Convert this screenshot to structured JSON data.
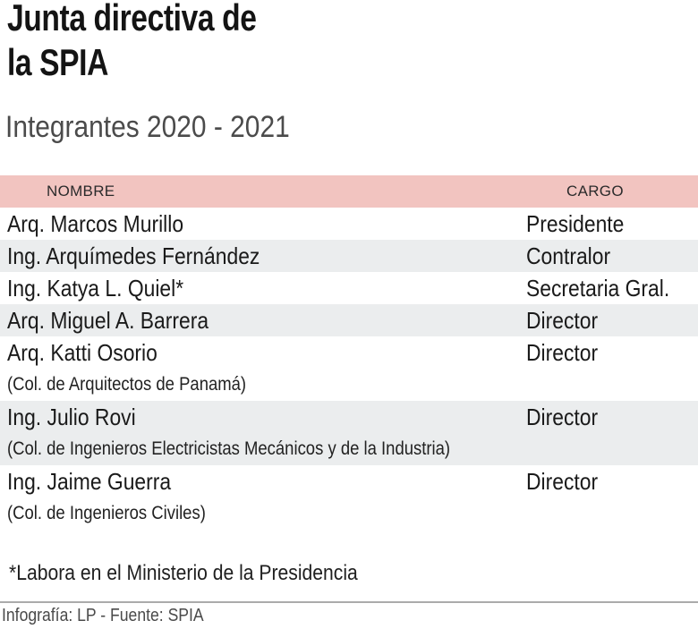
{
  "header": {
    "title_lines": [
      "Junta directiva de",
      "la SPIA"
    ],
    "subtitle": "Integrantes 2020 - 2021"
  },
  "table": {
    "columns": {
      "name": "NOMBRE",
      "cargo": "CARGO"
    },
    "rows": [
      {
        "name": "Arq. Marcos Murillo",
        "cargo": "Presidente"
      },
      {
        "name": "Ing. Arquímedes Fernández",
        "cargo": "Contralor"
      },
      {
        "name": "Ing. Katya L. Quiel*",
        "cargo": "Secretaria Gral."
      },
      {
        "name": "Arq. Miguel A. Barrera",
        "cargo": "Director"
      },
      {
        "name": "Arq. Katti Osorio",
        "subline": "(Col. de Arquitectos de Panamá)",
        "cargo": "Director"
      },
      {
        "name": "Ing. Julio Rovi",
        "subline": "(Col. de Ingenieros Electricistas Mecánicos y de la Industria)",
        "cargo": "Director"
      },
      {
        "name": "Ing. Jaime Guerra",
        "subline": "(Col. de Ingenieros Civiles)",
        "cargo": "Director"
      }
    ]
  },
  "footnote": "*Labora en el Ministerio de la Presidencia",
  "footer": {
    "credits": "Infografía: LP - Fuente: SPIA",
    "credits_clipped": "Infografía: LP - Fuente: SPIA"
  },
  "colors": {
    "header_pink": "#f2c4c0",
    "row_alt_gray": "#ebedee",
    "title_black": "#141414",
    "subtitle_gray": "#4b4b4b",
    "divider_gray": "#ababab",
    "credits_gray": "#4a4a4a"
  }
}
